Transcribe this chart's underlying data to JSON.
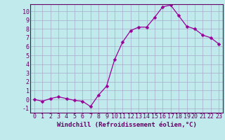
{
  "x": [
    0,
    1,
    2,
    3,
    4,
    5,
    6,
    7,
    8,
    9,
    10,
    11,
    12,
    13,
    14,
    15,
    16,
    17,
    18,
    19,
    20,
    21,
    22,
    23
  ],
  "y": [
    0,
    -0.2,
    0.1,
    0.3,
    0.1,
    -0.1,
    -0.2,
    -0.8,
    0.5,
    1.5,
    4.5,
    6.5,
    7.8,
    8.2,
    8.2,
    9.3,
    10.5,
    10.7,
    9.5,
    8.3,
    8.0,
    7.3,
    7.0,
    6.3
  ],
  "line_color": "#990099",
  "marker_color": "#990099",
  "bg_color": "#c0eaec",
  "grid_color": "#aaaacc",
  "axis_color": "#660066",
  "spine_color": "#660066",
  "xlabel": "Windchill (Refroidissement éolien,°C)",
  "ylim": [
    -1.5,
    10.8
  ],
  "xlim": [
    -0.5,
    23.5
  ],
  "yticks": [
    -1,
    0,
    1,
    2,
    3,
    4,
    5,
    6,
    7,
    8,
    9,
    10
  ],
  "xticks": [
    0,
    1,
    2,
    3,
    4,
    5,
    6,
    7,
    8,
    9,
    10,
    11,
    12,
    13,
    14,
    15,
    16,
    17,
    18,
    19,
    20,
    21,
    22,
    23
  ],
  "tick_fontsize": 6.0,
  "xlabel_fontsize": 6.5,
  "marker_size": 2.5,
  "line_width": 0.9
}
